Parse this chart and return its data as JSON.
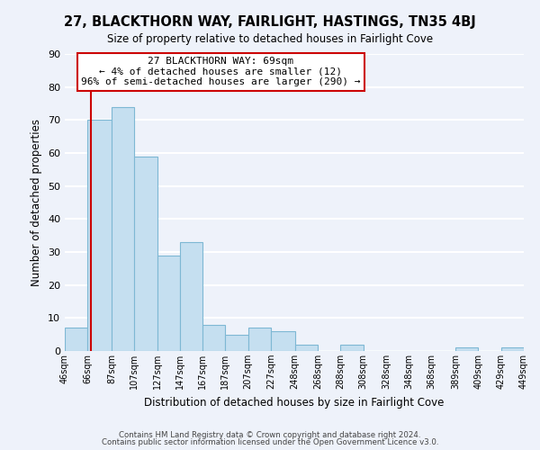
{
  "title": "27, BLACKTHORN WAY, FAIRLIGHT, HASTINGS, TN35 4BJ",
  "subtitle": "Size of property relative to detached houses in Fairlight Cove",
  "xlabel": "Distribution of detached houses by size in Fairlight Cove",
  "ylabel": "Number of detached properties",
  "bar_color": "#c5dff0",
  "bar_edge_color": "#7eb8d4",
  "vline_color": "#cc0000",
  "vline_x": 69,
  "bins": [
    46,
    66,
    87,
    107,
    127,
    147,
    167,
    187,
    207,
    227,
    248,
    268,
    288,
    308,
    328,
    348,
    368,
    389,
    409,
    429,
    449
  ],
  "bin_labels": [
    "46sqm",
    "66sqm",
    "87sqm",
    "107sqm",
    "127sqm",
    "147sqm",
    "167sqm",
    "187sqm",
    "207sqm",
    "227sqm",
    "248sqm",
    "268sqm",
    "288sqm",
    "308sqm",
    "328sqm",
    "348sqm",
    "368sqm",
    "389sqm",
    "409sqm",
    "429sqm",
    "449sqm"
  ],
  "counts": [
    7,
    70,
    74,
    59,
    29,
    33,
    8,
    5,
    7,
    6,
    2,
    0,
    2,
    0,
    0,
    0,
    0,
    1,
    0,
    1
  ],
  "ylim": [
    0,
    90
  ],
  "yticks": [
    0,
    10,
    20,
    30,
    40,
    50,
    60,
    70,
    80,
    90
  ],
  "annotation_text_line1": "27 BLACKTHORN WAY: 69sqm",
  "annotation_text_line2": "← 4% of detached houses are smaller (12)",
  "annotation_text_line3": "96% of semi-detached houses are larger (290) →",
  "footer1": "Contains HM Land Registry data © Crown copyright and database right 2024.",
  "footer2": "Contains public sector information licensed under the Open Government Licence v3.0.",
  "background_color": "#eef2fa",
  "grid_color": "#ffffff",
  "box_edge_color": "#cc0000"
}
